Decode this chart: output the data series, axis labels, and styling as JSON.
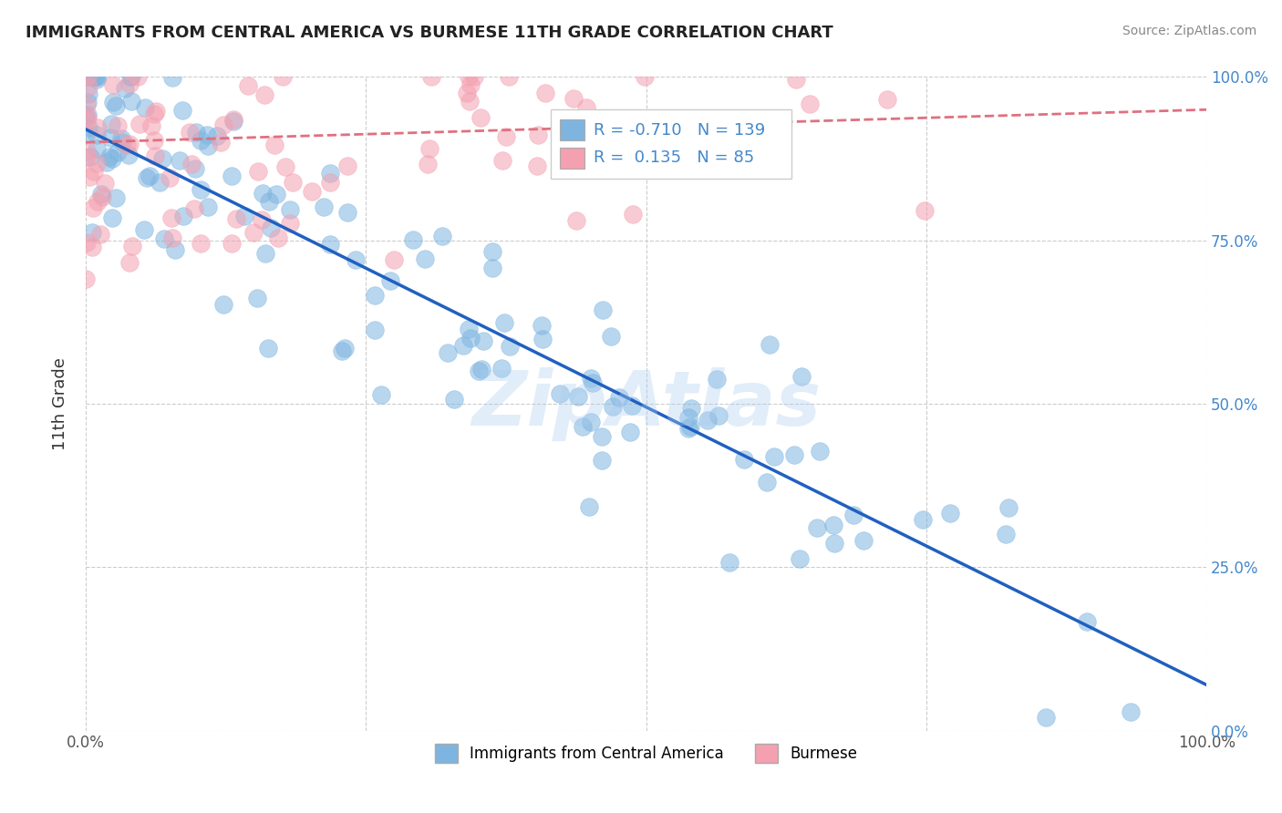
{
  "title": "IMMIGRANTS FROM CENTRAL AMERICA VS BURMESE 11TH GRADE CORRELATION CHART",
  "source": "Source: ZipAtlas.com",
  "ylabel": "11th Grade",
  "watermark": "ZipAtlas",
  "xlim": [
    0,
    1
  ],
  "ylim": [
    0,
    1
  ],
  "blue_R": -0.71,
  "blue_N": 139,
  "pink_R": 0.135,
  "pink_N": 85,
  "blue_color": "#7EB5E0",
  "pink_color": "#F4A0B0",
  "blue_line_color": "#2060C0",
  "pink_line_color": "#E07080",
  "legend_label_blue": "Immigrants from Central America",
  "legend_label_pink": "Burmese",
  "background_color": "#ffffff",
  "grid_color": "#cccccc",
  "title_fontsize": 13,
  "right_tick_color": "#4488cc"
}
